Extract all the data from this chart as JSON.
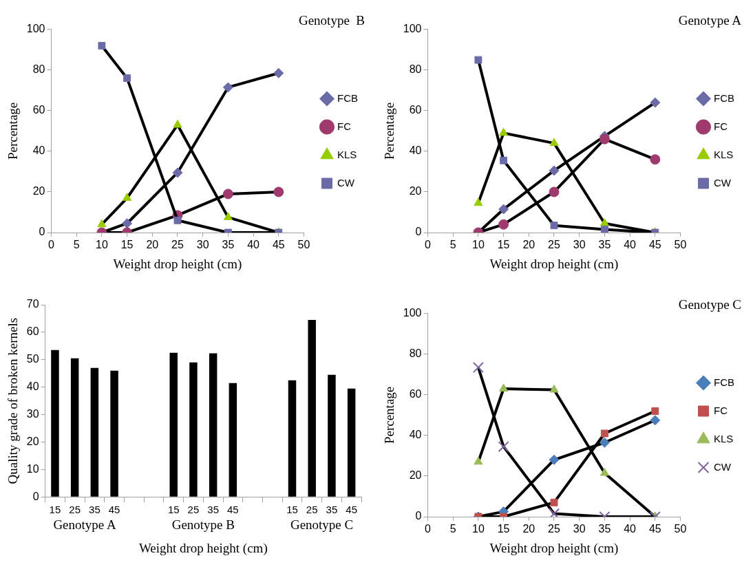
{
  "chart_data": [
    {
      "type": "line",
      "title": "Genotype  B",
      "xlabel": "Weight drop height (cm)",
      "ylabel": "Percentage",
      "x": [
        10,
        15,
        25,
        35,
        45
      ],
      "xlim": [
        0,
        50
      ],
      "xticks": [
        0,
        5,
        10,
        15,
        20,
        25,
        30,
        35,
        40,
        45,
        50
      ],
      "ylim": [
        0,
        100
      ],
      "yticks": [
        0,
        20,
        40,
        60,
        80,
        100
      ],
      "legend": "right",
      "series": [
        {
          "name": "FCB",
          "color": "#6b6ba8",
          "marker": "diamond",
          "values": [
            0,
            4.5,
            29.5,
            71.5,
            78.5
          ]
        },
        {
          "name": "FC",
          "color": "#9e3a6e",
          "marker": "circle",
          "values": [
            0,
            0,
            8.5,
            19,
            20
          ]
        },
        {
          "name": "KLS",
          "color": "#99cc00",
          "marker": "triangle",
          "values": [
            4,
            17,
            53,
            7.5,
            0
          ]
        },
        {
          "name": "CW",
          "color": "#6b6ba8",
          "marker": "square",
          "values": [
            92,
            76,
            6,
            0,
            0
          ]
        }
      ]
    },
    {
      "type": "line",
      "title": "Genotype A",
      "xlabel": "Weight drop height (cm)",
      "ylabel": "Percentage",
      "x": [
        10,
        15,
        25,
        35,
        45
      ],
      "xlim": [
        0,
        50
      ],
      "xticks": [
        0,
        5,
        10,
        15,
        20,
        25,
        30,
        35,
        40,
        45,
        50
      ],
      "ylim": [
        0,
        100
      ],
      "yticks": [
        0,
        20,
        40,
        60,
        80,
        100
      ],
      "legend": "right",
      "series": [
        {
          "name": "FCB",
          "color": "#6b6ba8",
          "marker": "diamond",
          "values": [
            0,
            11.5,
            30.5,
            47.5,
            64
          ]
        },
        {
          "name": "FC",
          "color": "#9e3a6e",
          "marker": "circle",
          "values": [
            0,
            4,
            20,
            46,
            36
          ]
        },
        {
          "name": "KLS",
          "color": "#99cc00",
          "marker": "triangle",
          "values": [
            14.5,
            49,
            44,
            4.5,
            0
          ]
        },
        {
          "name": "CW",
          "color": "#6b6ba8",
          "marker": "square",
          "values": [
            85,
            35.5,
            3.5,
            1.5,
            0
          ]
        }
      ]
    },
    {
      "type": "bar",
      "ylabel": "Quality grade of broken kernels",
      "xlabel": "Weight drop height (cm)",
      "categories": [
        "15",
        "25",
        "35",
        "45",
        null,
        null,
        "15",
        "25",
        "35",
        "45",
        null,
        null,
        "15",
        "25",
        "35",
        "45"
      ],
      "values": [
        53.5,
        50.5,
        47,
        46,
        null,
        null,
        52.5,
        49,
        52.3,
        41.5,
        null,
        null,
        42.5,
        64.5,
        44.5,
        39.5
      ],
      "color": "#000000",
      "ylim": [
        0,
        70
      ],
      "yticks": [
        0,
        10,
        20,
        30,
        40,
        50,
        60,
        70
      ],
      "annotations": [
        "Genotype A",
        "Genotype B",
        "Genotype C"
      ]
    },
    {
      "type": "line",
      "title": "Genotype C",
      "xlabel": "Weight drop height (cm)",
      "ylabel": "Percentage",
      "x": [
        10,
        15,
        25,
        35,
        45
      ],
      "xlim": [
        0,
        50
      ],
      "xticks": [
        0,
        5,
        10,
        15,
        20,
        25,
        30,
        35,
        40,
        45,
        50
      ],
      "ylim": [
        0,
        100
      ],
      "yticks": [
        0,
        20,
        40,
        60,
        80,
        100
      ],
      "legend": "right",
      "series": [
        {
          "name": "FCB",
          "color": "#4a7ebb",
          "marker": "diamond",
          "values": [
            0,
            2.5,
            28,
            36.5,
            47.5
          ]
        },
        {
          "name": "FC",
          "color": "#c0504d",
          "marker": "square",
          "values": [
            0,
            0,
            7,
            41,
            52
          ]
        },
        {
          "name": "KLS",
          "color": "#9bbb59",
          "marker": "triangle",
          "values": [
            27,
            63,
            62.5,
            21.5,
            0
          ]
        },
        {
          "name": "CW",
          "color": "#8064a2",
          "marker": "cross",
          "values": [
            73.5,
            34.5,
            1.5,
            0,
            0
          ]
        }
      ]
    }
  ]
}
